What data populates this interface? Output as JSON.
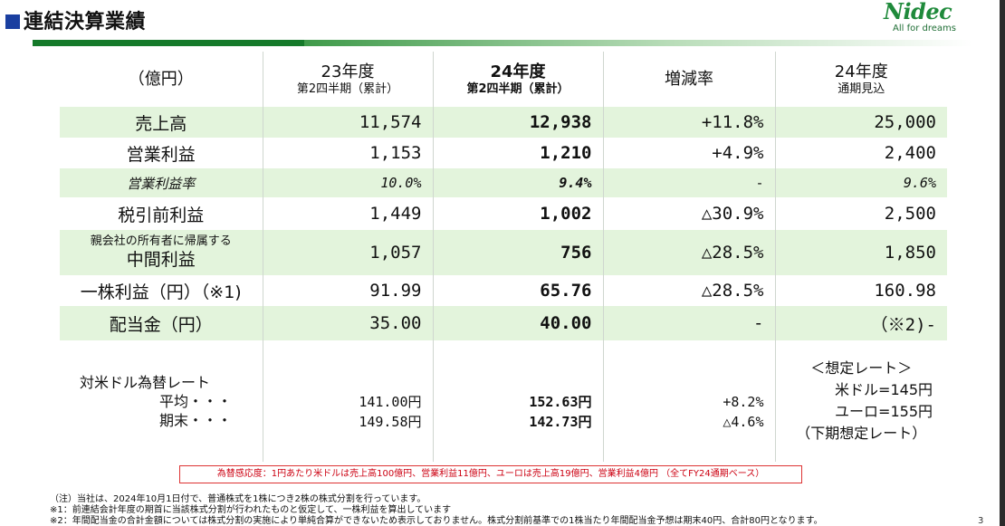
{
  "title": "連結決算業績",
  "logo": {
    "mark": "Nidec",
    "tagline": "All for dreams"
  },
  "columns": {
    "unit": "（億円）",
    "c23": {
      "line1": "23年度",
      "line2": "第2四半期（累計）"
    },
    "c24": {
      "line1": "24年度",
      "line2": "第2四半期（累計）"
    },
    "change": "増減率",
    "outlook": {
      "line1": "24年度",
      "line2": "通期見込"
    }
  },
  "rows": [
    {
      "label": "売上高",
      "v23": "11,574",
      "v24": "12,938",
      "chg": "+11.8%",
      "out": "25,000"
    },
    {
      "label": "営業利益",
      "v23": "1,153",
      "v24": "1,210",
      "chg": "+4.9%",
      "out": "2,400"
    },
    {
      "label": "営業利益率",
      "v23": "10.0%",
      "v24": "9.4%",
      "chg": "-",
      "out": "9.6%"
    },
    {
      "label": "税引前利益",
      "v23": "1,449",
      "v24": "1,002",
      "chg": "△30.9%",
      "out": "2,500"
    },
    {
      "label_small": "親会社の所有者に帰属する",
      "label": "中間利益",
      "v23": "1,057",
      "v24": "756",
      "chg": "△28.5%",
      "out": "1,850"
    },
    {
      "label": "一株利益（円）（※1)",
      "v23": "91.99",
      "v24": "65.76",
      "chg": "△28.5%",
      "out": "160.98"
    },
    {
      "label": "配当金（円）",
      "v23": "35.00",
      "v24": "40.00",
      "chg": "-",
      "out": "（※2)-"
    }
  ],
  "fx": {
    "label": "対米ドル為替レート",
    "avg_label": "平均・・・",
    "end_label": "期末・・・",
    "v23_avg": "141.00円",
    "v23_end": "149.58円",
    "v24_avg": "152.63円",
    "v24_end": "142.73円",
    "chg_avg": "+8.2%",
    "chg_end": "△4.6%",
    "outlook": [
      "＜想定レート＞",
      "米ドル=145円",
      "ユーロ=155円",
      "（下期想定レート）"
    ]
  },
  "note_box": "為替感応度：1円あたり米ドルは売上高100億円、営業利益11億円、ユーロは売上高19億円、営業利益4億円 （全てFY24通期ベース）",
  "footnotes": [
    "（注）当社は、2024年10月1日付で、普通株式を1株につき2株の株式分割を行っています。",
    "※1：前連結会計年度の期首に当該株式分割が行われたものと仮定して、一株利益を算出しています",
    "※2：年間配当金の合計金額については株式分割の実施により単純合算ができないため表示しておりません。株式分割前基準での1株当たり年間配当金予想は期末40円、合計80円となります。"
  ],
  "page_number": "3",
  "colors": {
    "accent_green": "#157a2a",
    "row_green": "#e3f4dc",
    "title_square": "#1a3fa0",
    "note_red": "#c01"
  }
}
